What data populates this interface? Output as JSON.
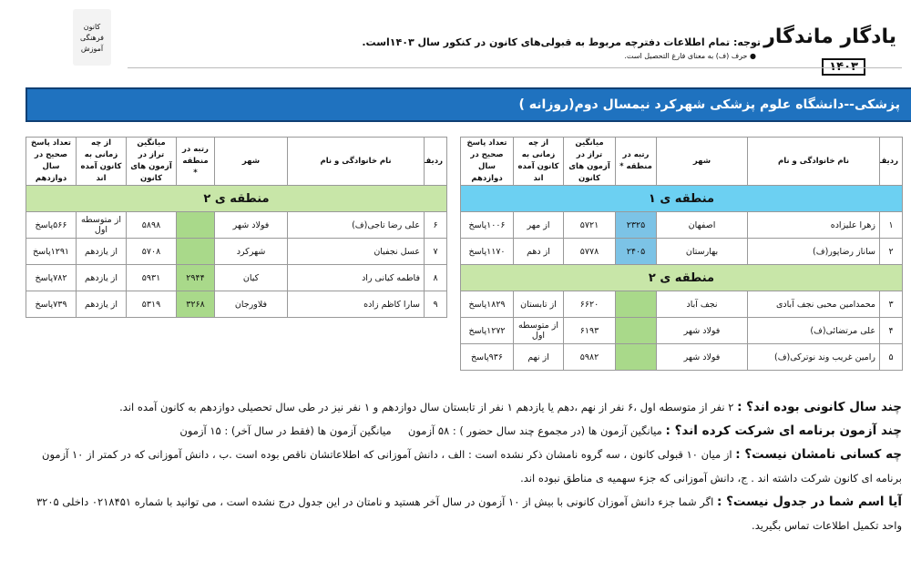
{
  "header": {
    "logo_title": "یادگار ماندگار",
    "logo_year": "۱۴۰۳",
    "notice": "توجه: تمام اطلاعات دفترچه مربوط به قبولی‌های کانون در کنکور سال ۱۴۰۳است.",
    "note": "● حرف (ف) به معنای فارغ التحصیل است.",
    "side_logo": [
      "کانون",
      "فرهنگی",
      "آموزش"
    ]
  },
  "banner": "پزشکی--دانشگاه علوم پزشکی شهرکرد نیمسال دوم(روزانه )",
  "tables": [
    {
      "columns": [
        "ردیف",
        "نام خانوادگی و نام",
        "شهر",
        "رتبه در منطقه *",
        "میانگین تراز در آزمون های کانون",
        "از چه زمانی به کانون آمده اند",
        "تعداد پاسخ صحیح در سال دوازدهم"
      ],
      "sections": [
        {
          "label": "منطقه ی ۱",
          "header_color": "#6cd0f2",
          "rank_color": "#7cc3e6",
          "rows": [
            [
              "۱",
              "زهرا علیزاده",
              "اصفهان",
              "۲۳۲۵",
              "۵۷۲۱",
              "از مهر",
              "۱۰۰۶پاسخ"
            ],
            [
              "۲",
              "ساناز رضاپور(ف)",
              "بهارستان",
              "۲۴۰۵",
              "۵۷۷۸",
              "از دهم",
              "۱۱۷۰پاسخ"
            ]
          ]
        },
        {
          "label": "منطقه ی ۲",
          "header_color": "#c8e6a8",
          "rank_color": "#a9d98a",
          "rows": [
            [
              "۳",
              "محمدامین محبی نجف آبادی",
              "نجف آباد",
              null,
              "۶۶۲۰",
              "از تابستان",
              "۱۸۲۹پاسخ"
            ],
            [
              "۴",
              "علی مرتضائی(ف)",
              "فولاد شهر",
              null,
              "۶۱۹۳",
              "از متوسطه اول",
              "۱۲۷۲پاسخ"
            ],
            [
              "۵",
              "رامین غریب وند نوترکی(ف)",
              "فولاد شهر",
              null,
              "۵۹۸۲",
              "از نهم",
              "۹۳۶پاسخ"
            ]
          ]
        }
      ]
    },
    {
      "columns": [
        "ردیف",
        "نام خانوادگی و نام",
        "شهر",
        "رتبه در منطقه *",
        "میانگین تراز در آزمون های کانون",
        "از چه زمانی به کانون آمده اند",
        "تعداد پاسخ صحیح در سال دوازدهم"
      ],
      "sections": [
        {
          "label": "منطقه ی ۲",
          "header_color": "#c8e6a8",
          "rank_color": "#a9d98a",
          "rows": [
            [
              "۶",
              "علی رضا تاجی(ف)",
              "فولاد شهر",
              null,
              "۵۸۹۸",
              "از متوسطه اول",
              "۵۶۶پاسخ"
            ],
            [
              "۷",
              "عسل نجفیان",
              "شهرکرد",
              null,
              "۵۷۰۸",
              "از یازدهم",
              "۱۲۹۱پاسخ"
            ],
            [
              "۸",
              "فاطمه کیانی راد",
              "کیان",
              "۲۹۴۴",
              "۵۹۳۱",
              "از یازدهم",
              "۷۸۲پاسخ"
            ],
            [
              "۹",
              "سارا کاظم زاده",
              "فلاورجان",
              "۳۲۶۸",
              "۵۳۱۹",
              "از یازدهم",
              "۷۳۹پاسخ"
            ]
          ]
        }
      ]
    }
  ],
  "faq": [
    {
      "q": "چند سال کانونی بوده اند؟ :",
      "a": "۲ نفر از متوسطه اول ،۶ نفر از نهم ،دهم یا یازدهم ۱ نفر از تابستان سال دوازدهم و ۱ نفر نیز در طی سال تحصیلی دوازدهم به کانون آمده اند."
    },
    {
      "q": "چند آزمون برنامه ای شرکت کرده اند؟ :",
      "a": "میانگین آزمون ها (در مجموع چند سال حضور ) : ۵۸ آزمون     میانگین آزمون ها (فقط در سال آخر) : ۱۵ آزمون"
    },
    {
      "q": "چه کسانی نامشان نیست؟ :",
      "a": "از میان ۱۰ قبولی کانون ، سه گروه نامشان ذکر نشده است : الف ، دانش آموزانی که اطلاعاتشان ناقص بوده است .ب ، دانش آموزانی که در کمتر از ۱۰ آزمون برنامه ای کانون شرکت داشته اند . ج، دانش آموزانی که جزء سهمیه ی مناطق نبوده اند."
    },
    {
      "q": "آیا اسم شما در جدول نیست؟ :",
      "a": "اگر شما جزء دانش آموزان کانونی با بیش از ۱۰ آزمون در سال آخر هستید و نامتان در این جدول درج نشده است ، می توانید با شماره ۰۲۱۸۴۵۱ داخلی ۳۲۰۵ واحد تکمیل اطلاعات تماس بگیرید."
    }
  ]
}
